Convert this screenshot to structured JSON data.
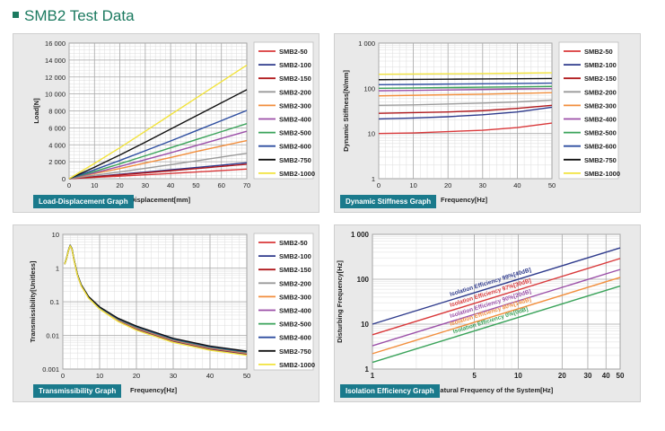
{
  "page_title": "SMB2 Test Data",
  "legend": [
    "SMB2-50",
    "SMB2-100",
    "SMB2-150",
    "SMB2-200",
    "SMB2-300",
    "SMB2-400",
    "SMB2-500",
    "SMB2-600",
    "SMB2-750",
    "SMB2-1000"
  ],
  "colors": [
    "#d9383a",
    "#2e3a8c",
    "#b0181c",
    "#9a9a9a",
    "#f28e3c",
    "#9b4fa8",
    "#3aa35a",
    "#2e4ea0",
    "#111111",
    "#f2e33c"
  ],
  "chart_data": [
    {
      "id": "load",
      "type": "line",
      "badge": "Load-Displacement Graph",
      "xlabel": "Displacement[mm]",
      "ylabel": "Load[N]",
      "xlim": [
        0,
        70
      ],
      "ylim": [
        0,
        16000
      ],
      "xticks": [
        0,
        10,
        20,
        30,
        40,
        50,
        60,
        70
      ],
      "yticks": [
        0,
        2000,
        4000,
        6000,
        8000,
        10000,
        12000,
        14000,
        16000
      ],
      "ytick_labels": [
        "0",
        "2 000",
        "4 000",
        "6 000",
        "8 000",
        "10 000",
        "12 000",
        "14 000",
        "16 000"
      ],
      "grid": true,
      "legend_position": "right",
      "series": [
        {
          "name": "SMB2-50",
          "x": [
            0,
            10,
            20,
            30,
            40,
            50,
            60,
            70
          ],
          "y": [
            0,
            150,
            300,
            460,
            620,
            790,
            960,
            1130
          ]
        },
        {
          "name": "SMB2-100",
          "x": [
            0,
            10,
            20,
            30,
            40,
            50,
            60,
            70
          ],
          "y": [
            0,
            250,
            520,
            780,
            1050,
            1320,
            1600,
            1880
          ]
        },
        {
          "name": "SMB2-150",
          "x": [
            0,
            10,
            20,
            30,
            40,
            50,
            60,
            70
          ],
          "y": [
            0,
            220,
            450,
            690,
            940,
            1190,
            1450,
            1700
          ]
        },
        {
          "name": "SMB2-200",
          "x": [
            0,
            10,
            20,
            30,
            40,
            50,
            60,
            70
          ],
          "y": [
            0,
            400,
            800,
            1220,
            1650,
            2100,
            2550,
            3000
          ]
        },
        {
          "name": "SMB2-300",
          "x": [
            0,
            10,
            20,
            30,
            40,
            50,
            60,
            70
          ],
          "y": [
            0,
            600,
            1200,
            1850,
            2500,
            3200,
            3850,
            4500
          ]
        },
        {
          "name": "SMB2-400",
          "x": [
            0,
            10,
            20,
            30,
            40,
            50,
            60,
            70
          ],
          "y": [
            0,
            700,
            1450,
            2250,
            3050,
            3900,
            4750,
            5600
          ]
        },
        {
          "name": "SMB2-500",
          "x": [
            0,
            10,
            20,
            30,
            40,
            50,
            60,
            70
          ],
          "y": [
            0,
            850,
            1750,
            2700,
            3650,
            4600,
            5550,
            6500
          ]
        },
        {
          "name": "SMB2-600",
          "x": [
            0,
            10,
            20,
            30,
            40,
            50,
            60,
            70
          ],
          "y": [
            0,
            1050,
            2150,
            3300,
            4450,
            5650,
            6850,
            8050
          ]
        },
        {
          "name": "SMB2-750",
          "x": [
            0,
            10,
            20,
            30,
            40,
            50,
            60,
            70
          ],
          "y": [
            0,
            1350,
            2800,
            4300,
            5850,
            7400,
            8950,
            10500
          ]
        },
        {
          "name": "SMB2-1000",
          "x": [
            0,
            10,
            20,
            30,
            40,
            50,
            60,
            70
          ],
          "y": [
            0,
            1800,
            3650,
            5600,
            7550,
            9500,
            11450,
            13400
          ]
        }
      ]
    },
    {
      "id": "stiffness",
      "type": "line",
      "badge": "Dynamic Stiffness Graph",
      "xlabel": "Frequency[Hz]",
      "ylabel": "Dynamic Stiffness[N/mm]",
      "yscale": "log",
      "xlim": [
        0,
        50
      ],
      "ylim": [
        1,
        1000
      ],
      "xticks": [
        0,
        10,
        20,
        30,
        40,
        50
      ],
      "yticks": [
        1,
        10,
        100,
        1000
      ],
      "ytick_labels": [
        "1",
        "10",
        "100",
        "1 000"
      ],
      "grid": true,
      "legend_position": "right",
      "series": [
        {
          "name": "SMB2-50",
          "x": [
            0,
            10,
            20,
            30,
            40,
            50
          ],
          "y": [
            10,
            10.3,
            11,
            11.8,
            13.5,
            17
          ]
        },
        {
          "name": "SMB2-100",
          "x": [
            0,
            10,
            20,
            30,
            40,
            50
          ],
          "y": [
            21,
            22,
            23.5,
            26,
            30,
            38
          ]
        },
        {
          "name": "SMB2-150",
          "x": [
            0,
            10,
            20,
            30,
            40,
            50
          ],
          "y": [
            28,
            29,
            30,
            32,
            36,
            42
          ]
        },
        {
          "name": "SMB2-200",
          "x": [
            0,
            10,
            20,
            30,
            40,
            50
          ],
          "y": [
            42,
            43,
            45,
            47,
            50,
            55
          ]
        },
        {
          "name": "SMB2-300",
          "x": [
            0,
            10,
            20,
            30,
            40,
            50
          ],
          "y": [
            68,
            70,
            72,
            74,
            77,
            80
          ]
        },
        {
          "name": "SMB2-400",
          "x": [
            0,
            10,
            20,
            30,
            40,
            50
          ],
          "y": [
            88,
            90,
            92,
            94,
            96,
            98
          ]
        },
        {
          "name": "SMB2-500",
          "x": [
            0,
            10,
            20,
            30,
            40,
            50
          ],
          "y": [
            100,
            102,
            104,
            106,
            108,
            110
          ]
        },
        {
          "name": "SMB2-600",
          "x": [
            0,
            10,
            20,
            30,
            40,
            50
          ],
          "y": [
            120,
            122,
            124,
            126,
            128,
            130
          ]
        },
        {
          "name": "SMB2-750",
          "x": [
            0,
            10,
            20,
            30,
            40,
            50
          ],
          "y": [
            155,
            157,
            159,
            161,
            163,
            165
          ]
        },
        {
          "name": "SMB2-1000",
          "x": [
            0,
            10,
            20,
            30,
            40,
            50
          ],
          "y": [
            205,
            207,
            209,
            212,
            216,
            220
          ]
        }
      ]
    },
    {
      "id": "transmissibility",
      "type": "line",
      "badge": "Transmissibility Graph",
      "xlabel": "Frequency[Hz]",
      "ylabel": "Transmissibility[Unitless]",
      "yscale": "log",
      "xlim": [
        0,
        50
      ],
      "ylim": [
        0.001,
        10
      ],
      "xticks": [
        0,
        10,
        20,
        30,
        40,
        50
      ],
      "yticks": [
        0.001,
        0.01,
        0.1,
        1,
        10
      ],
      "ytick_labels": [
        "0.001",
        "0.01",
        "0.1",
        "1",
        "10"
      ],
      "grid": true,
      "legend_position": "right",
      "series_common": {
        "x": [
          0.5,
          1,
          1.5,
          2,
          2.5,
          3,
          4,
          5,
          7,
          10,
          15,
          20,
          30,
          40,
          50
        ],
        "y": [
          1.3,
          1.9,
          3.2,
          4.6,
          3.6,
          1.8,
          0.6,
          0.3,
          0.13,
          0.062,
          0.027,
          0.015,
          0.0065,
          0.0038,
          0.0027
        ]
      },
      "series_spread": [
        1.0,
        1.03,
        1.06,
        1.09,
        1.12,
        1.15,
        1.18,
        1.22,
        1.26,
        0.95
      ]
    },
    {
      "id": "isolation",
      "type": "line",
      "badge": "Isolation Efficiency Graph",
      "xlabel": "Natural Frequency of the System[Hz]",
      "ylabel": "Disturbing Frequency[Hz]",
      "xscale": "log",
      "yscale": "log",
      "xlim": [
        1,
        50
      ],
      "ylim": [
        1,
        1000
      ],
      "xticks": [
        1,
        5,
        10,
        20,
        30,
        40,
        50
      ],
      "xtick_labels": [
        "1",
        "5",
        "10",
        "20",
        "30",
        "40",
        "50"
      ],
      "yticks": [
        1,
        10,
        100,
        1000
      ],
      "ytick_labels": [
        "1",
        "10",
        "100",
        "1 000"
      ],
      "grid": true,
      "series": [
        {
          "name": "Isolation Efficiency 99%[40dB]",
          "color": "#2e3a8c",
          "x": [
            1,
            50
          ],
          "y": [
            10,
            500
          ]
        },
        {
          "name": "Isolation Efficiency 97%[30dB]",
          "color": "#d9383a",
          "x": [
            1,
            50
          ],
          "y": [
            5.8,
            290
          ]
        },
        {
          "name": "Isolation Efficiency 90%[20dB]",
          "color": "#9b4fa8",
          "x": [
            1,
            50
          ],
          "y": [
            3.3,
            165
          ]
        },
        {
          "name": "Isolation Efficiency 80%[14dB]",
          "color": "#f28e3c",
          "x": [
            1,
            50
          ],
          "y": [
            2.2,
            110
          ]
        },
        {
          "name": "Isolation Efficiency 0%[0dB]",
          "color": "#3aa35a",
          "x": [
            1,
            50
          ],
          "y": [
            1.41,
            70.7
          ]
        }
      ]
    }
  ]
}
